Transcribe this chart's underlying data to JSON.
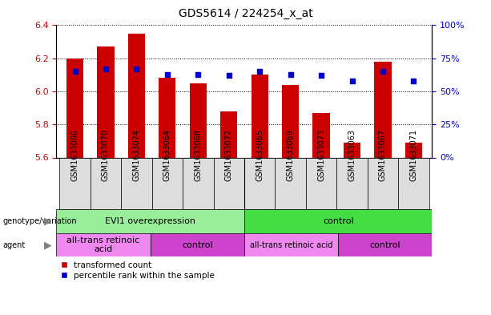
{
  "title": "GDS5614 / 224254_x_at",
  "samples": [
    "GSM1633066",
    "GSM1633070",
    "GSM1633074",
    "GSM1633064",
    "GSM1633068",
    "GSM1633072",
    "GSM1633065",
    "GSM1633069",
    "GSM1633073",
    "GSM1633063",
    "GSM1633067",
    "GSM1633071"
  ],
  "transformed_counts": [
    6.2,
    6.27,
    6.35,
    6.08,
    6.05,
    5.88,
    6.1,
    6.04,
    5.87,
    5.69,
    6.18,
    5.69
  ],
  "percentile_ranks": [
    65,
    67,
    67,
    63,
    63,
    62,
    65,
    63,
    62,
    58,
    65,
    58
  ],
  "ylim_left": [
    5.6,
    6.4
  ],
  "ylim_right": [
    0,
    100
  ],
  "yticks_left": [
    5.6,
    5.8,
    6.0,
    6.2,
    6.4
  ],
  "yticks_right": [
    0,
    25,
    50,
    75,
    100
  ],
  "ytick_labels_right": [
    "0%",
    "25%",
    "50%",
    "75%",
    "100%"
  ],
  "bar_color": "#CC0000",
  "dot_color": "#0000CC",
  "bar_width": 0.55,
  "bar_bottom": 5.6,
  "genotype_groups": [
    {
      "label": "EVI1 overexpression",
      "start": 0,
      "end": 6,
      "color": "#99EE99"
    },
    {
      "label": "control",
      "start": 6,
      "end": 12,
      "color": "#44DD44"
    }
  ],
  "agent_groups": [
    {
      "label": "all-trans retinoic\nacid",
      "start": 0,
      "end": 3,
      "color": "#EE88EE"
    },
    {
      "label": "control",
      "start": 3,
      "end": 6,
      "color": "#CC44CC"
    },
    {
      "label": "all-trans retinoic acid",
      "start": 6,
      "end": 9,
      "color": "#EE88EE"
    },
    {
      "label": "control",
      "start": 9,
      "end": 12,
      "color": "#CC44CC"
    }
  ],
  "legend_red_label": "transformed count",
  "legend_blue_label": "percentile rank within the sample",
  "tick_label_color_left": "#CC0000",
  "tick_label_color_right": "#0000CC",
  "grid_color": "black",
  "bg_color": "#DDDDDD",
  "plot_bg_color": "#FFFFFF"
}
